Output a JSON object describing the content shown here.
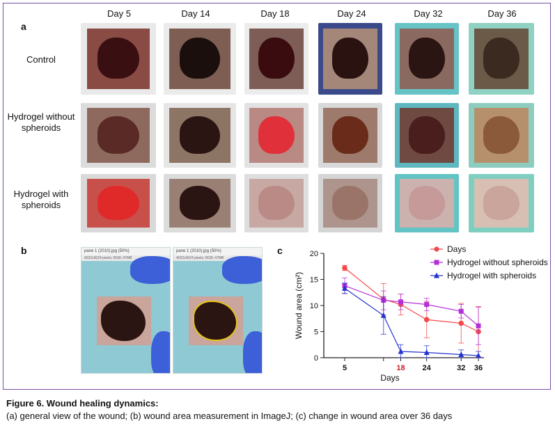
{
  "figure": {
    "panel_a": "a",
    "panel_b": "b",
    "panel_c": "c",
    "days": [
      "Day  5",
      "Day  14",
      "Day  18",
      "Day  24",
      "Day  32",
      "Day  36"
    ],
    "rows": [
      {
        "label_line1": "Control",
        "label_line2": ""
      },
      {
        "label_line1": "Hydrogel without",
        "label_line2": "spheroids"
      },
      {
        "label_line1": "Hydrogel with",
        "label_line2": "spheroids"
      }
    ],
    "imagej_titles": [
      "pane 1 (2010).jpg (50%)",
      "pane 1 (2010).jpg (50%)"
    ],
    "imagej_info": [
      "4032x3024 pixels; RGB; 47MB",
      "4032x3024 pixels; RGB; 47MB"
    ]
  },
  "caption": {
    "title": "Figure 6. Wound healing dynamics:",
    "text": "(a) general view of the wound; (b) wound area measurement in ImageJ; (c) change in wound area over 36 days"
  },
  "colors": {
    "control": "#f4484a",
    "without": "#b32fd8",
    "with": "#2233cc",
    "frame": "#7a4fa0",
    "highlight_tick": "#cc2222"
  },
  "chart_data": {
    "type": "line",
    "xlabel": "Days",
    "ylabel": "Wound area (cm²)",
    "ylim": [
      0,
      20
    ],
    "xlim": [
      5,
      36
    ],
    "xticks": [
      5,
      18,
      24,
      32,
      36
    ],
    "yticks": [
      0,
      5,
      10,
      15,
      20
    ],
    "highlighted_xtick": 18,
    "legend_position": "top-right",
    "series": [
      {
        "name": "Days",
        "marker": "circle",
        "color": "#f4484a",
        "x": [
          5,
          14,
          18,
          24,
          32,
          36
        ],
        "y": [
          17.2,
          11.2,
          10.2,
          7.3,
          6.6,
          5.0
        ],
        "err": [
          0.5,
          3.0,
          2.0,
          3.5,
          3.8,
          4.8
        ]
      },
      {
        "name": "Hydrogel without spheroids",
        "marker": "square",
        "color": "#b32fd8",
        "x": [
          5,
          14,
          18,
          24,
          32,
          36
        ],
        "y": [
          13.8,
          11.0,
          10.7,
          10.2,
          8.9,
          6.1
        ],
        "err": [
          1.5,
          1.8,
          1.5,
          1.2,
          1.3,
          3.6
        ]
      },
      {
        "name": "Hydrogel with spheroids",
        "marker": "triangle",
        "color": "#2233cc",
        "x": [
          5,
          14,
          18,
          24,
          32,
          36
        ],
        "y": [
          13.3,
          8.1,
          1.2,
          1.0,
          0.6,
          0.4
        ],
        "err": [
          1.0,
          3.6,
          1.3,
          1.3,
          0.9,
          0.8
        ]
      }
    ]
  }
}
